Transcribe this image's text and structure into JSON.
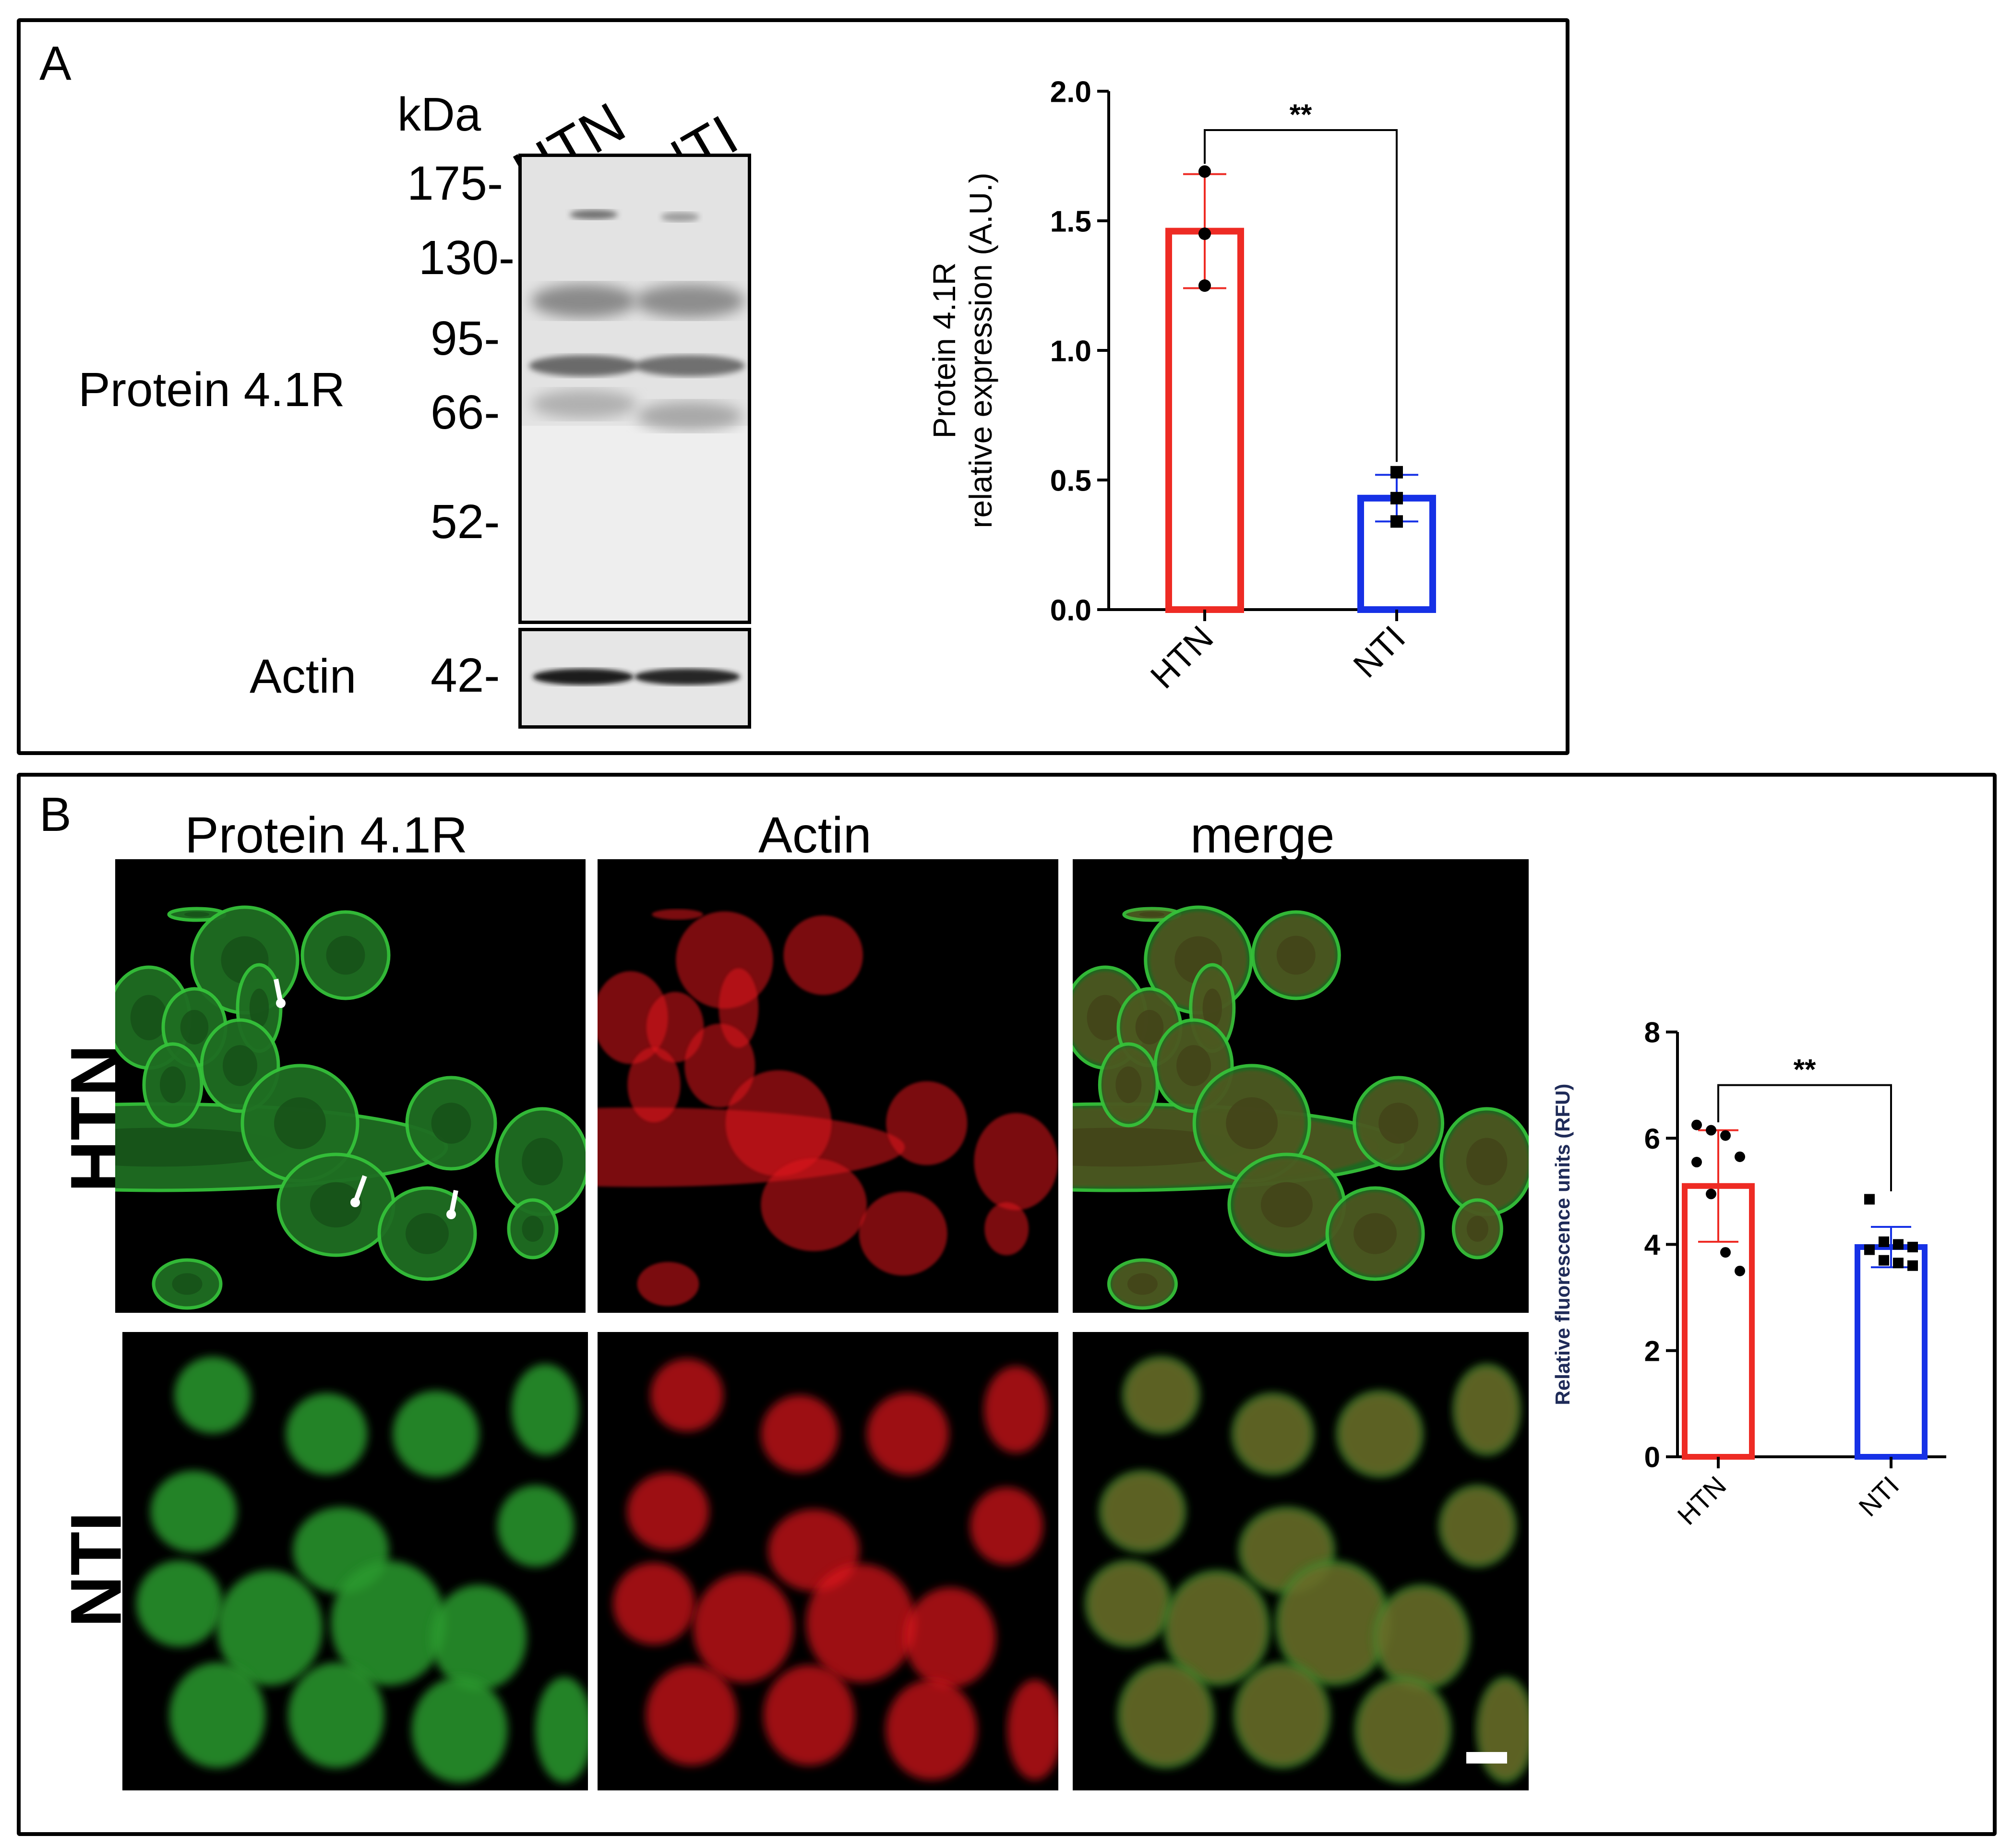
{
  "panel_a": {
    "letter": "A",
    "kda_label": "kDa",
    "lanes": [
      "HTN",
      "NTI"
    ],
    "markers": [
      "175-",
      "130-",
      "95-",
      "66-",
      "52-"
    ],
    "actin_marker": "42-",
    "blot_labels": {
      "protein": "Protein 4.1R",
      "actin": "Actin"
    }
  },
  "panel_b": {
    "letter": "B",
    "columns": [
      "Protein 4.1R",
      "Actin",
      "merge"
    ],
    "rows": [
      "HTN",
      "NTI"
    ]
  },
  "colors": {
    "htn": "#ee2b24",
    "nti": "#1631e6",
    "green_channel": "#35c23a",
    "red_channel": "#e0161b"
  },
  "chart_data": [
    {
      "type": "bar",
      "categories": [
        "HTN",
        "NTI"
      ],
      "values": [
        1.46,
        0.43
      ],
      "error": [
        0.22,
        0.09
      ],
      "points": [
        [
          1.69,
          1.45,
          1.25
        ],
        [
          0.53,
          0.43,
          0.34
        ]
      ],
      "marker": [
        "circle",
        "square"
      ],
      "ylabel": "Protein 4.1R\nrelative expression (A.U.)",
      "ylim": [
        0,
        2.0
      ],
      "yticks": [
        "0.0",
        "0.5",
        "1.0",
        "1.5",
        "2.0"
      ],
      "significance": "**",
      "grid": false
    },
    {
      "type": "bar",
      "categories": [
        "HTN",
        "NTI"
      ],
      "values": [
        5.1,
        3.95
      ],
      "error": [
        1.05,
        0.38
      ],
      "points": [
        [
          6.25,
          6.15,
          6.05,
          5.65,
          5.55,
          4.95,
          3.85,
          3.5
        ],
        [
          4.85,
          4.05,
          4.0,
          3.95,
          3.9,
          3.7,
          3.65,
          3.6
        ]
      ],
      "marker": [
        "circle",
        "square"
      ],
      "ylabel": "Relative fluorescence units (RFU)",
      "ylim": [
        0,
        8
      ],
      "yticks": [
        "0",
        "2",
        "4",
        "6",
        "8"
      ],
      "significance": "**",
      "grid": false
    }
  ]
}
